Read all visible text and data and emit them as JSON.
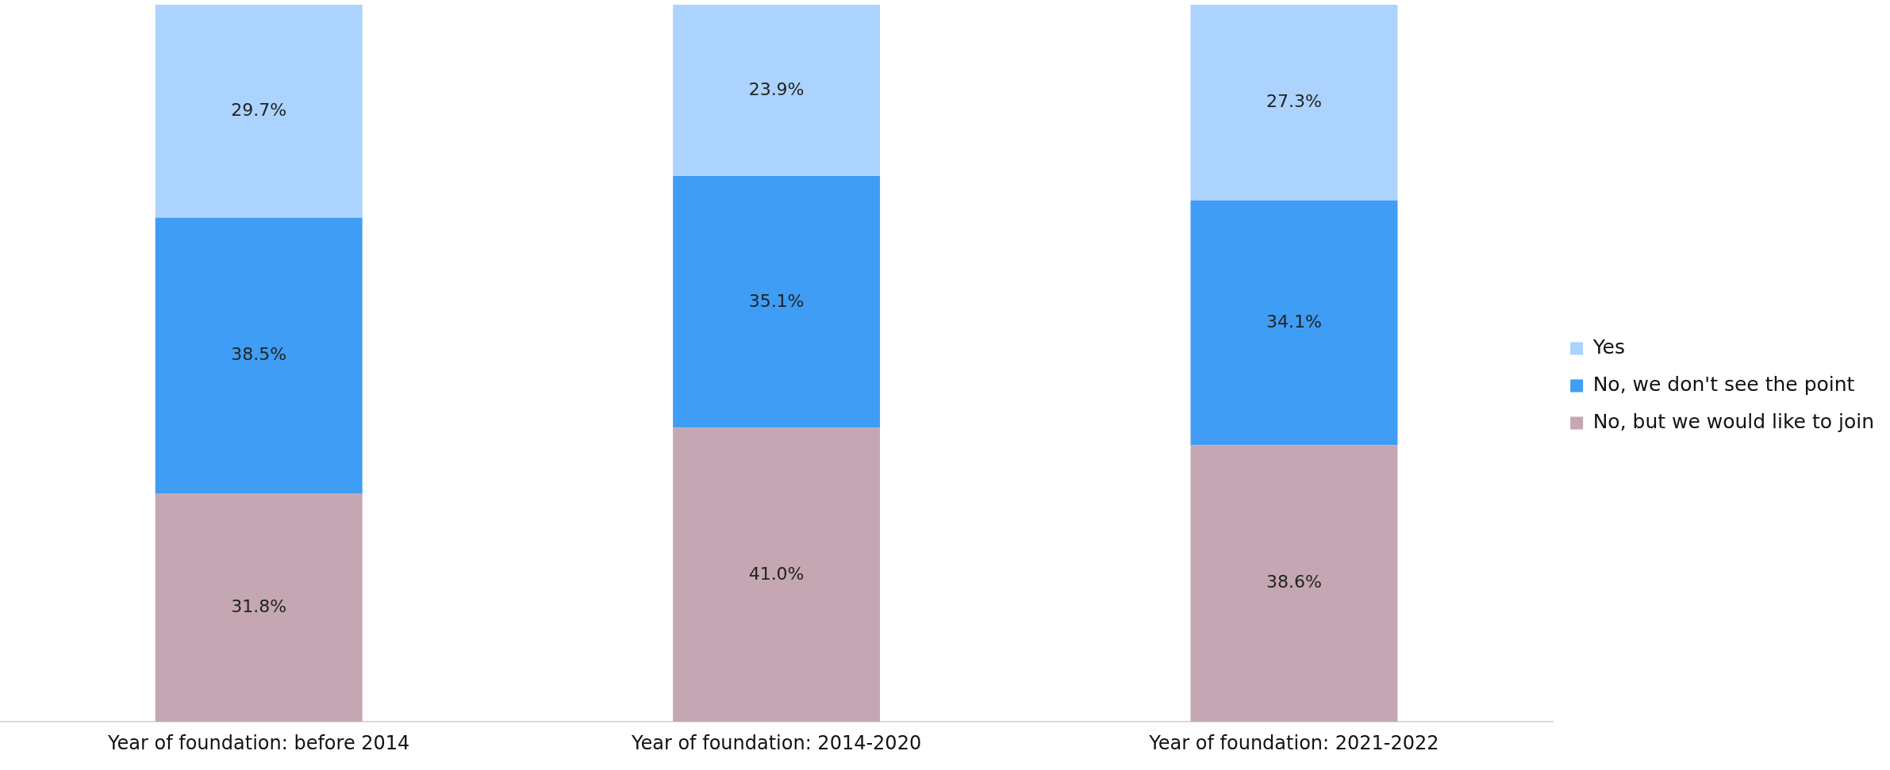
{
  "chart_data": {
    "type": "bar",
    "stacked": true,
    "categories": [
      "Year of foundation: before 2014",
      "Year of foundation: 2014-2020",
      "Year of foundation: 2021-2022"
    ],
    "series": [
      {
        "name": "No, but we would like to join",
        "color": "#c4a7b3",
        "values": [
          31.8,
          41.0,
          38.6
        ],
        "value_labels": [
          "31.8%",
          "41.0%",
          "38.6%"
        ]
      },
      {
        "name": "No, we don't see the point",
        "color": "#3f9df5",
        "values": [
          38.5,
          35.1,
          34.1
        ],
        "value_labels": [
          "38.5%",
          "35.1%",
          "34.1%"
        ]
      },
      {
        "name": "Yes",
        "color": "#abd3fd",
        "values": [
          29.7,
          23.9,
          27.3
        ],
        "value_labels": [
          "29.7%",
          "23.9%",
          "27.3%"
        ]
      }
    ],
    "ylim": [
      0,
      100
    ],
    "tick_labels": "x",
    "grid": false,
    "legend": "right"
  }
}
